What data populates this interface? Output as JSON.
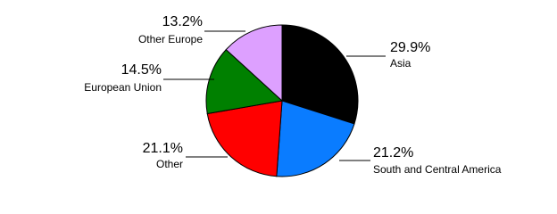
{
  "chart_data": {
    "type": "pie",
    "categories": [
      "Asia",
      "South and Central America",
      "Other",
      "European Union",
      "Other Europe"
    ],
    "values": [
      29.9,
      21.2,
      21.1,
      14.5,
      13.2
    ],
    "value_labels": [
      "29.9%",
      "21.2%",
      "21.1%",
      "14.5%",
      "13.2%"
    ],
    "colors": [
      "#000000",
      "#0a7cff",
      "#ff0000",
      "#008000",
      "#dda0ff"
    ]
  }
}
